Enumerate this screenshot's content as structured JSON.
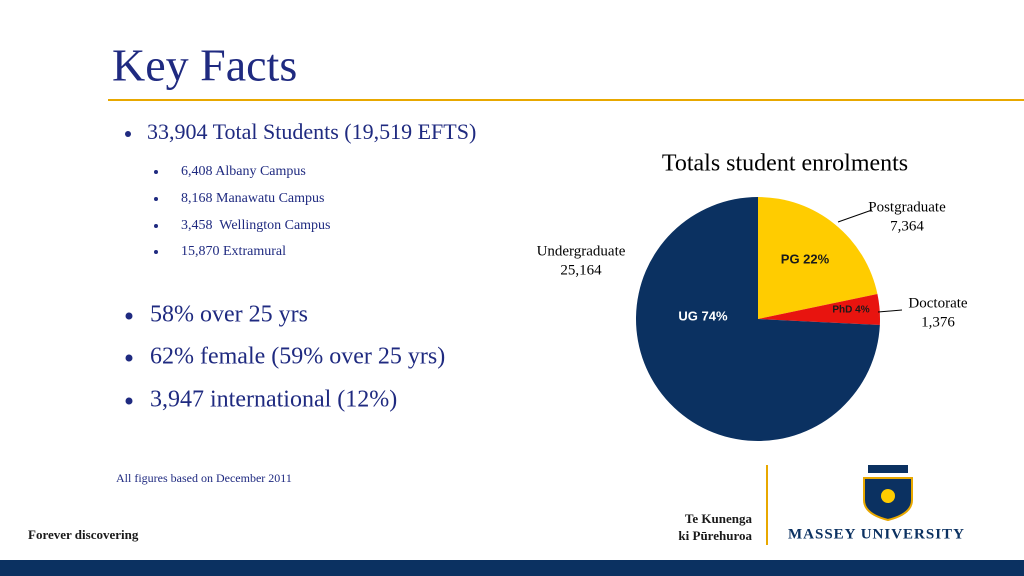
{
  "header": {
    "title": "Key Facts"
  },
  "main_bullet": "33,904 Total Students (19,519 EFTS)",
  "sub_bullets": [
    "6,408 Albany Campus",
    "8,168 Manawatu Campus",
    "3,458  Wellington Campus",
    "15,870 Extramural"
  ],
  "bullets": [
    "58% over 25 yrs",
    "62% female (59% over 25 yrs)",
    "3,947 international (12%)"
  ],
  "footnote": "All figures based on December 2011",
  "footer": {
    "tagline": "Forever discovering",
    "maori_name": [
      "Te Kunenga",
      "ki Pūrehuroa"
    ],
    "university": "MASSEY UNIVERSITY"
  },
  "chart_data": {
    "type": "pie",
    "title": "Totals student enrolments",
    "categories": [
      "Postgraduate",
      "Doctorate",
      "Undergraduate"
    ],
    "values": [
      7364,
      1376,
      25164
    ],
    "value_labels": [
      "7,364",
      "1,376",
      "25,164"
    ],
    "slice_labels": [
      "PG 22%",
      "PhD 4%",
      "UG 74%"
    ],
    "colors": [
      "#ffcc00",
      "#e8140f",
      "#0b3161"
    ]
  }
}
